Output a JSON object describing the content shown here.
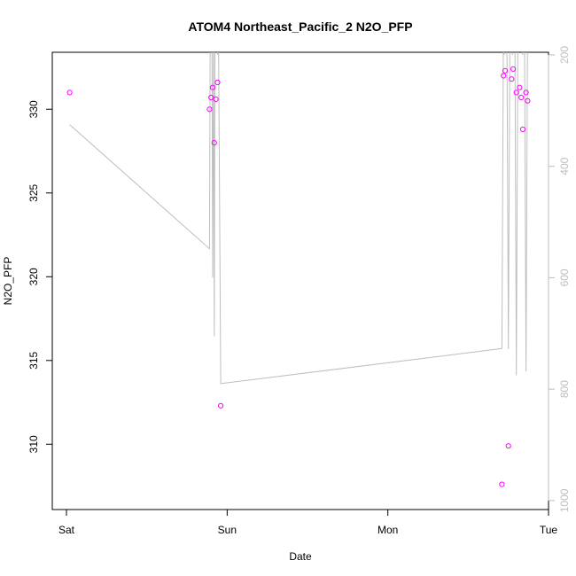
{
  "chart_data": {
    "type": "scatter",
    "title": "ATOM4 Northeast_Pacific_2 N2O_PFP",
    "xlabel": "Date",
    "ylabel": "N2O_PFP",
    "x_ticks": [
      "Sat",
      "Sun",
      "Mon",
      "Tue"
    ],
    "y_ticks": [
      310,
      315,
      320,
      325,
      330
    ],
    "y_right_ticks": [
      200,
      400,
      600,
      800,
      1000
    ],
    "xlim": [
      0,
      3
    ],
    "ylim": [
      306.1,
      333.4
    ],
    "y_right_lim": [
      200,
      1040
    ],
    "grid": false,
    "legend": "none",
    "points_color": "#ff00ff",
    "line_color": "#bebebe",
    "series": [
      {
        "type": "scatter",
        "x": [
          0.02,
          0.89,
          0.9,
          0.91,
          0.92,
          0.93,
          0.94,
          0.96,
          2.71,
          2.72,
          2.73,
          2.75,
          2.77,
          2.78,
          2.8,
          2.82,
          2.83,
          2.84,
          2.86,
          2.87
        ],
        "y": [
          331.0,
          330.0,
          330.7,
          331.3,
          328.0,
          330.6,
          331.6,
          312.3,
          307.6,
          332.0,
          332.3,
          309.9,
          331.8,
          332.4,
          331.0,
          331.3,
          330.7,
          328.8,
          331.0,
          330.5
        ]
      },
      {
        "type": "line",
        "axis": "right",
        "x": [
          0.02,
          0.89,
          0.895,
          0.9,
          0.905,
          0.91,
          0.915,
          0.92,
          0.925,
          0.93,
          0.935,
          0.94,
          0.945,
          0.96,
          2.71,
          2.72,
          2.725,
          2.73,
          2.74,
          2.75,
          2.76,
          2.77,
          2.775,
          2.78,
          2.79,
          2.8,
          2.81,
          2.82,
          2.83,
          2.84,
          2.845,
          2.85,
          2.86,
          2.87
        ],
        "y": [
          325,
          548,
          120,
          50,
          120,
          600,
          120,
          705,
          120,
          50,
          120,
          200,
          120,
          790,
          727,
          120,
          200,
          120,
          120,
          728,
          120,
          120,
          200,
          120,
          120,
          775,
          120,
          120,
          120,
          200,
          120,
          120,
          768,
          120
        ]
      }
    ]
  }
}
